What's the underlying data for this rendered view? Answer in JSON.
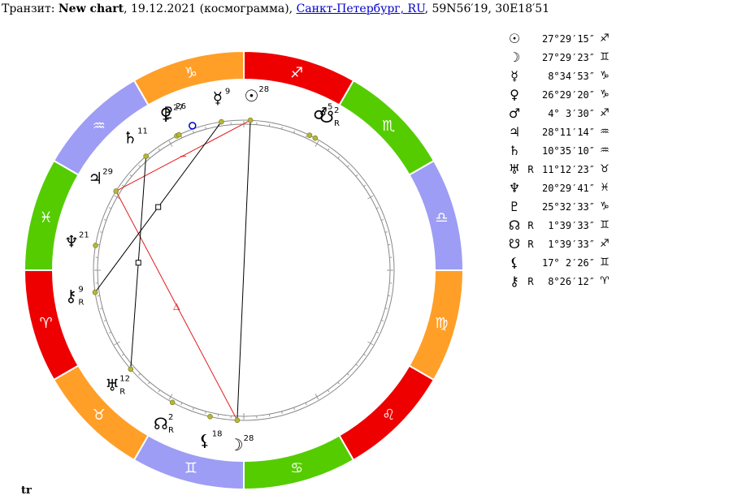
{
  "header": {
    "prefix": "Транзит: ",
    "chart_name": "New chart",
    "date_text": ", 19.12.2021 (космограмма), ",
    "location_link": "Санкт-Петербург, RU",
    "coords_text": ", 59N56′19, 30E18′51"
  },
  "wheel": {
    "signs": [
      {
        "name": "Aries",
        "glyph": "♈",
        "color": "#ee0000"
      },
      {
        "name": "Taurus",
        "glyph": "♉",
        "color": "#ff9f28"
      },
      {
        "name": "Gemini",
        "glyph": "♊",
        "color": "#9d9df5"
      },
      {
        "name": "Cancer",
        "glyph": "♋",
        "color": "#55cc00"
      },
      {
        "name": "Leo",
        "glyph": "♌",
        "color": "#ee0000"
      },
      {
        "name": "Virgo",
        "glyph": "♍",
        "color": "#ff9f28"
      },
      {
        "name": "Libra",
        "glyph": "♎",
        "color": "#9d9df5"
      },
      {
        "name": "Scorpio",
        "glyph": "♏",
        "color": "#55cc00"
      },
      {
        "name": "Sagittarius",
        "glyph": "♐",
        "color": "#ee0000"
      },
      {
        "name": "Capricorn",
        "glyph": "♑",
        "color": "#ff9f28"
      },
      {
        "name": "Aquarius",
        "glyph": "♒",
        "color": "#9d9df5"
      },
      {
        "name": "Pisces",
        "glyph": "♓",
        "color": "#55cc00"
      }
    ],
    "planets": [
      {
        "key": "sun",
        "glyph": "☉",
        "degree": "28",
        "retro": "",
        "lon": 267.49
      },
      {
        "key": "moon",
        "glyph": "☽",
        "degree": "28",
        "retro": "",
        "lon": 87.49
      },
      {
        "key": "mercury",
        "glyph": "☿",
        "degree": "9",
        "retro": "",
        "lon": 278.58
      },
      {
        "key": "venus",
        "glyph": "♀",
        "degree": "27",
        "retro": "",
        "lon": 296.49
      },
      {
        "key": "mars",
        "glyph": "♂",
        "degree": "5",
        "retro": "",
        "lon": 244.06
      },
      {
        "key": "jupiter",
        "glyph": "♃",
        "degree": "29",
        "retro": "",
        "lon": 328.19
      },
      {
        "key": "saturn",
        "glyph": "♄",
        "degree": "11",
        "retro": "",
        "lon": 310.59
      },
      {
        "key": "uranus",
        "glyph": "♅",
        "degree": "12",
        "retro": "R",
        "lon": 41.21
      },
      {
        "key": "neptune",
        "glyph": "♆",
        "degree": "21",
        "retro": "",
        "lon": 350.49
      },
      {
        "key": "pluto",
        "glyph": "♇",
        "degree": "26",
        "retro": "",
        "lon": 295.54
      },
      {
        "key": "north-node",
        "glyph": "☊",
        "degree": "2",
        "retro": "R",
        "lon": 61.66
      },
      {
        "key": "south-node",
        "glyph": "☋",
        "degree": "2",
        "retro": "R",
        "lon": 241.66
      },
      {
        "key": "lilith",
        "glyph": "⚸",
        "degree": "18",
        "retro": "",
        "lon": 77.04
      },
      {
        "key": "chiron",
        "glyph": "⚷",
        "degree": "9",
        "retro": "R",
        "lon": 8.44
      }
    ],
    "aspects": [
      {
        "from": "jupiter",
        "to": "sun",
        "color": "#e21b1b",
        "marker": "−"
      },
      {
        "from": "jupiter",
        "to": "moon",
        "color": "#e21b1b",
        "marker": "△"
      },
      {
        "from": "sun",
        "to": "moon",
        "color": "#000000",
        "marker": ""
      },
      {
        "from": "mercury",
        "to": "chiron",
        "color": "#000000",
        "marker": "□"
      },
      {
        "from": "saturn",
        "to": "uranus",
        "color": "#000000",
        "marker": "□"
      }
    ]
  },
  "table": [
    {
      "glyph": "☉",
      "retro": "",
      "position": "27°29′15″",
      "sign": "♐"
    },
    {
      "glyph": "☽",
      "retro": "",
      "position": "27°29′23″",
      "sign": "♊"
    },
    {
      "glyph": "☿",
      "retro": "",
      "position": "8°34′53″",
      "sign": "♑"
    },
    {
      "glyph": "♀",
      "retro": "",
      "position": "26°29′20″",
      "sign": "♑"
    },
    {
      "glyph": "♂",
      "retro": "",
      "position": "4° 3′30″",
      "sign": "♐"
    },
    {
      "glyph": "♃",
      "retro": "",
      "position": "28°11′14″",
      "sign": "♒"
    },
    {
      "glyph": "♄",
      "retro": "",
      "position": "10°35′10″",
      "sign": "♒"
    },
    {
      "glyph": "♅",
      "retro": "R",
      "position": "11°12′23″",
      "sign": "♉"
    },
    {
      "glyph": "♆",
      "retro": "",
      "position": "20°29′41″",
      "sign": "♓"
    },
    {
      "glyph": "♇",
      "retro": "",
      "position": "25°32′33″",
      "sign": "♑"
    },
    {
      "glyph": "☊",
      "retro": "R",
      "position": "1°39′33″",
      "sign": "♊"
    },
    {
      "glyph": "☋",
      "retro": "R",
      "position": "1°39′33″",
      "sign": "♐"
    },
    {
      "glyph": "⚸",
      "retro": "",
      "position": "17° 2′26″",
      "sign": "♊"
    },
    {
      "glyph": "⚷",
      "retro": "R",
      "position": "8°26′12″",
      "sign": "♈"
    }
  ],
  "footer": {
    "label": "tr"
  }
}
